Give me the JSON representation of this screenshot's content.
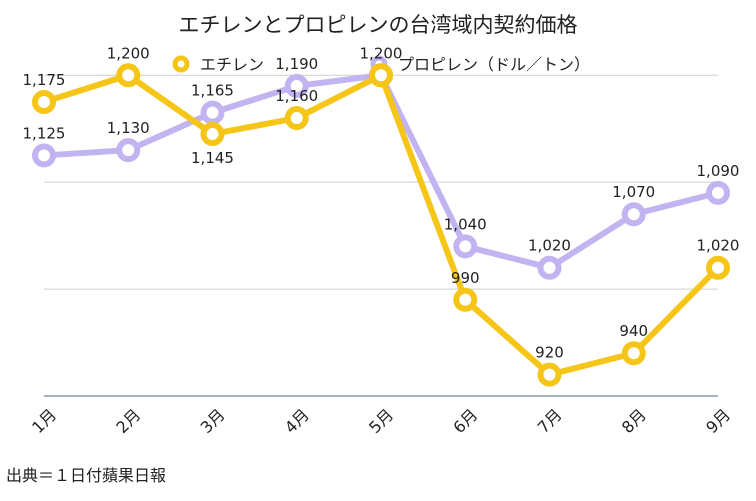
{
  "chart_data": {
    "type": "line",
    "title": "エチレンとプロピレンの台湾域内契約価格",
    "categories": [
      "1月",
      "2月",
      "3月",
      "4月",
      "5月",
      "6月",
      "7月",
      "8月",
      "9月"
    ],
    "series": [
      {
        "name": "エチレン",
        "color": "#f5c518",
        "values": [
          1175,
          1200,
          1145,
          1160,
          1200,
          990,
          920,
          940,
          1020
        ],
        "labels": [
          "1,175",
          "1,200",
          "1,145",
          "1,160",
          "1,200",
          "990",
          "920",
          "940",
          "1,020"
        ]
      },
      {
        "name": "プロピレン（ドル／トン）",
        "color": "#c2b4f0",
        "values": [
          1125,
          1130,
          1165,
          1190,
          1200,
          1040,
          1020,
          1070,
          1090
        ],
        "labels": [
          "1,125",
          "1,130",
          "1,165",
          "1,190",
          "",
          "1,040",
          "1,020",
          "1,070",
          "1,090"
        ]
      }
    ],
    "ylim": [
      900,
      1250
    ],
    "grid": true,
    "legend_position": "top"
  },
  "source": "出典＝１日付蘋果日報"
}
